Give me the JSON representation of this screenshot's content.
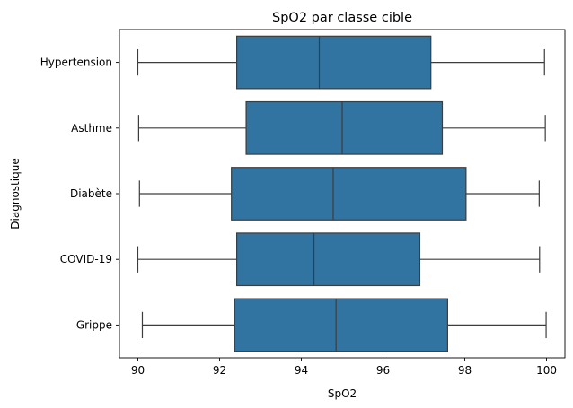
{
  "chart_data": {
    "type": "boxplot",
    "orientation": "horizontal",
    "title": "SpO2 par classe cible",
    "xlabel": "SpO2",
    "ylabel": "Diagnostique",
    "xlim": [
      89.55,
      100.45
    ],
    "x_ticks": [
      90,
      92,
      94,
      96,
      98,
      100
    ],
    "x_tick_labels": [
      "90",
      "92",
      "94",
      "96",
      "98",
      "100"
    ],
    "grid": false,
    "legend": "none",
    "box_color": "#3274a1",
    "line_color": "#3d3d3d",
    "categories": [
      "Hypertension",
      "Asthme",
      "Diabète",
      "COVID-19",
      "Grippe"
    ],
    "series": [
      {
        "category": "Hypertension",
        "min": 90.0,
        "q1": 92.42,
        "median": 94.44,
        "q3": 97.17,
        "max": 99.95
      },
      {
        "category": "Asthme",
        "min": 90.02,
        "q1": 92.65,
        "median": 95.0,
        "q3": 97.45,
        "max": 99.97
      },
      {
        "category": "Diabète",
        "min": 90.04,
        "q1": 92.29,
        "median": 94.78,
        "q3": 98.03,
        "max": 99.82
      },
      {
        "category": "COVID-19",
        "min": 90.0,
        "q1": 92.42,
        "median": 94.31,
        "q3": 96.9,
        "max": 99.83
      },
      {
        "category": "Grippe",
        "min": 90.11,
        "q1": 92.37,
        "median": 94.85,
        "q3": 97.58,
        "max": 99.99
      }
    ]
  }
}
